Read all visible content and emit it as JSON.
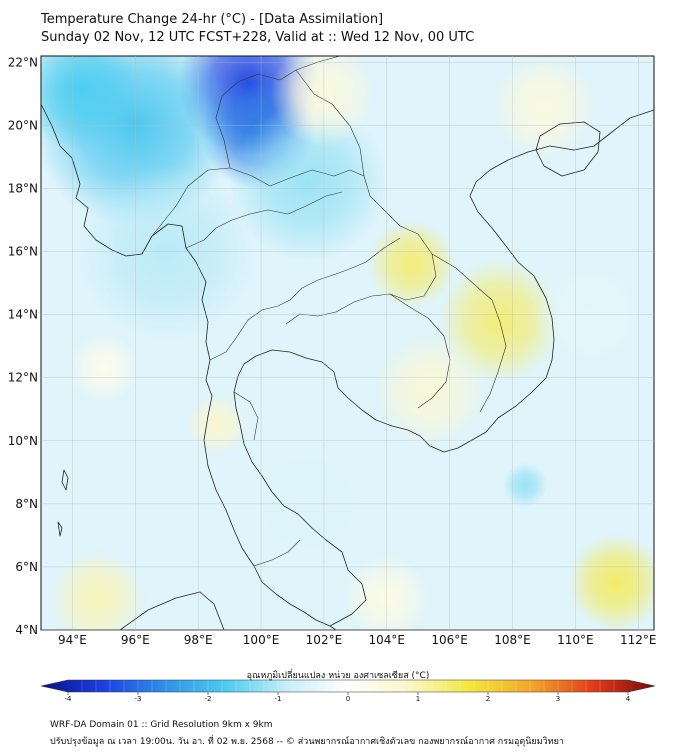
{
  "header": {
    "title_line1": "Temperature Change 24-hr (°C) - [Data Assimilation]",
    "title_line2": "Sunday 02 Nov, 12 UTC FCST+228, Valid at :: Wed 12 Nov, 00 UTC"
  },
  "map": {
    "lat_labels": [
      "22°N",
      "20°N",
      "18°N",
      "16°N",
      "14°N",
      "12°N",
      "10°N",
      "8°N",
      "6°N",
      "4°N"
    ],
    "lat_values": [
      22,
      20,
      18,
      16,
      14,
      12,
      10,
      8,
      6,
      4
    ],
    "lon_labels": [
      "94°E",
      "96°E",
      "98°E",
      "100°E",
      "102°E",
      "104°E",
      "106°E",
      "108°E",
      "110°E",
      "112°E"
    ],
    "lon_values": [
      94,
      96,
      98,
      100,
      102,
      104,
      106,
      108,
      110,
      112
    ],
    "lon_range": [
      93,
      112.5
    ],
    "lat_range": [
      4,
      22.2
    ],
    "ocean_color": "#dff4fb",
    "land_outline_color": "#222222",
    "field_blobs": [
      {
        "lon": 99.6,
        "lat": 21.3,
        "value": -3.2,
        "spread": 1.6
      },
      {
        "lon": 99.9,
        "lat": 19.8,
        "value": -2.6,
        "spread": 1.3
      },
      {
        "lon": 96.0,
        "lat": 20.0,
        "value": -1.7,
        "spread": 2.3
      },
      {
        "lon": 94.2,
        "lat": 21.2,
        "value": -1.6,
        "spread": 1.4
      },
      {
        "lon": 101.5,
        "lat": 18.2,
        "value": -1.1,
        "spread": 1.8
      },
      {
        "lon": 97.0,
        "lat": 16.0,
        "value": -0.9,
        "spread": 2.0
      },
      {
        "lon": 104.8,
        "lat": 15.6,
        "value": 1.3,
        "spread": 1.0
      },
      {
        "lon": 107.6,
        "lat": 13.8,
        "value": 1.3,
        "spread": 1.4
      },
      {
        "lon": 105.4,
        "lat": 11.6,
        "value": 0.6,
        "spread": 1.3
      },
      {
        "lon": 98.6,
        "lat": 10.5,
        "value": 0.7,
        "spread": 0.7
      },
      {
        "lon": 111.3,
        "lat": 5.5,
        "value": 1.4,
        "spread": 1.1
      },
      {
        "lon": 94.8,
        "lat": 5.0,
        "value": 0.9,
        "spread": 1.1
      },
      {
        "lon": 102.0,
        "lat": 21.0,
        "value": 0.5,
        "spread": 1.2
      },
      {
        "lon": 109.0,
        "lat": 20.6,
        "value": 0.5,
        "spread": 1.2
      },
      {
        "lon": 108.4,
        "lat": 8.6,
        "value": -1.1,
        "spread": 0.5
      },
      {
        "lon": 101.5,
        "lat": 8.0,
        "value": -0.5,
        "spread": 1.2
      },
      {
        "lon": 110.5,
        "lat": 14.0,
        "value": -0.4,
        "spread": 1.3
      },
      {
        "lon": 104.0,
        "lat": 5.0,
        "value": 0.4,
        "spread": 1.0
      },
      {
        "lon": 95.0,
        "lat": 12.3,
        "value": 0.3,
        "spread": 0.8
      }
    ]
  },
  "colorbar": {
    "title": "อุณหภูมิเปลี่ยนแปลง หน่วย องศาเซลเซียส (°C)",
    "ticks": [
      "-4",
      "-3",
      "-2",
      "-1",
      "0",
      "1",
      "2",
      "3",
      "4"
    ],
    "tick_values": [
      -4,
      -3,
      -2,
      -1,
      0,
      1,
      2,
      3,
      4
    ],
    "range": [
      -4,
      4
    ],
    "colors": [
      "#0d0d8a",
      "#1b3fe0",
      "#2f8fe8",
      "#49cdf0",
      "#c8eef8",
      "#ffffff",
      "#fbf6c8",
      "#f1e83c",
      "#f3a52a",
      "#e23a1a",
      "#7a0a0a"
    ]
  },
  "footer": {
    "line1": "WRF-DA Domain 01 :: Grid Resolution 9km x 9km",
    "line2": "ปรับปรุงข้อมูล ณ เวลา 19:00น. วัน อา. ที่ 02 พ.ย. 2568 -- © ส่วนพยากรณ์อากาศเชิงตัวเลข กองพยากรณ์อากาศ กรมอุตุนิยมวิทยา"
  }
}
